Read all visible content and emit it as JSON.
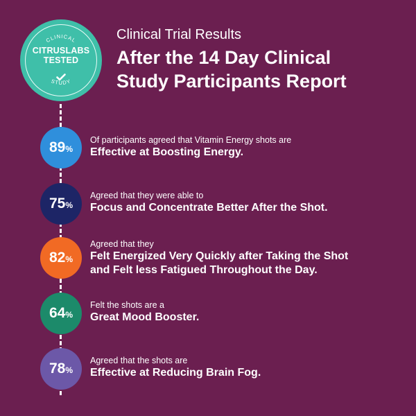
{
  "badge": {
    "top_text": "CLINICAL",
    "line1": "CITRUSLABS",
    "line2": "TESTED",
    "bottom_text": "STUDY",
    "color": "#3fbfa9"
  },
  "header": {
    "subtitle": "Clinical Trial Results",
    "title_line1": "After the 14 Day Clinical",
    "title_line2": "Study Participants Report"
  },
  "stats": [
    {
      "value": "89",
      "unit": "%",
      "lead": "Of participants agreed that Vitamin Energy shots are",
      "bold1": "Effective at Boosting Energy.",
      "bold2": "",
      "color": "#2f8fdc"
    },
    {
      "value": "75",
      "unit": "%",
      "lead": "Agreed that they were able to",
      "bold1": "Focus and Concentrate Better After the Shot.",
      "bold2": "",
      "color": "#1d2566"
    },
    {
      "value": "82",
      "unit": "%",
      "lead": "Agreed that they",
      "bold1": "Felt Energized Very Quickly after Taking the Shot",
      "bold2": "and Felt less Fatigued Throughout the Day.",
      "color": "#f16a24"
    },
    {
      "value": "64",
      "unit": "%",
      "lead": "Felt the shots are a",
      "bold1": "Great Mood Booster.",
      "bold2": "",
      "color": "#1c8a6a"
    },
    {
      "value": "78",
      "unit": "%",
      "lead": "Agreed that the shots are",
      "bold1": "Effective at Reducing Brain Fog.",
      "bold2": "",
      "color": "#6c58a8"
    }
  ],
  "icons": {
    "check": "check-icon"
  }
}
